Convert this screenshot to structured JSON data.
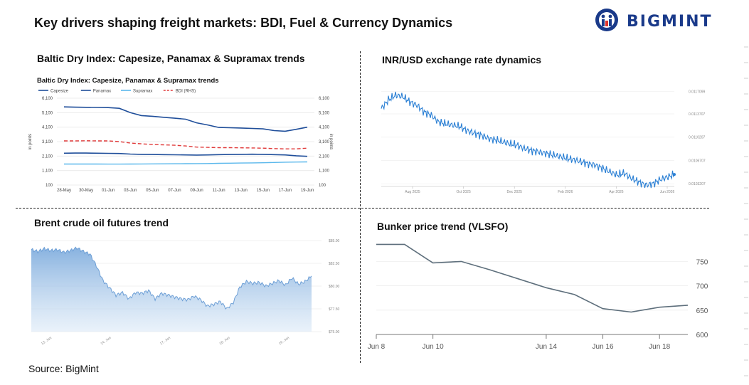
{
  "header": {
    "title": "Key drivers shaping freight markets: BDI, Fuel & Currency Dynamics",
    "logo_text": "BIGMINT"
  },
  "source": "Source: BigMint",
  "panels": {
    "bdi": {
      "title": "Baltic Dry Index: Capesize, Panamax & Supramax trends"
    },
    "inr": {
      "title": "INR/USD exchange rate dynamics"
    },
    "brent": {
      "title": "Brent crude oil futures trend"
    },
    "bunker": {
      "title": "Bunker price trend (VLSFO)"
    }
  },
  "chart_data": [
    {
      "type": "line",
      "title": "Baltic Dry Index: Capesize, Panamax & Supramax trends",
      "ylabel": "in points",
      "ylabel_right": "in points",
      "ylim": [
        100,
        6100
      ],
      "yticks": [
        "100",
        "1,100",
        "2,100",
        "3,100",
        "4,100",
        "5,100",
        "6,100"
      ],
      "categories": [
        "28-May",
        "30-May",
        "01-Jun",
        "03-Jun",
        "05-Jun",
        "07-Jun",
        "09-Jun",
        "11-Jun",
        "13-Jun",
        "15-Jun",
        "17-Jun",
        "19-Jun"
      ],
      "x": [
        "28-May",
        "29-May",
        "30-May",
        "31-May",
        "01-Jun",
        "02-Jun",
        "03-Jun",
        "04-Jun",
        "05-Jun",
        "06-Jun",
        "07-Jun",
        "08-Jun",
        "09-Jun",
        "10-Jun",
        "11-Jun",
        "12-Jun",
        "13-Jun",
        "14-Jun",
        "15-Jun",
        "16-Jun",
        "17-Jun",
        "18-Jun",
        "19-Jun"
      ],
      "series": [
        {
          "name": "Capesize",
          "color": "#1f4e9a",
          "dash": false,
          "values": [
            5500,
            5480,
            5470,
            5460,
            5450,
            5400,
            5100,
            4900,
            4850,
            4780,
            4720,
            4650,
            4400,
            4250,
            4080,
            4060,
            4040,
            4010,
            3980,
            3860,
            3820,
            3950,
            4100
          ]
        },
        {
          "name": "Panamax",
          "color": "#1f4e9a",
          "dash": false,
          "values": [
            2300,
            2310,
            2310,
            2300,
            2290,
            2280,
            2240,
            2220,
            2210,
            2200,
            2190,
            2180,
            2170,
            2180,
            2200,
            2210,
            2220,
            2230,
            2220,
            2200,
            2180,
            2120,
            2080
          ]
        },
        {
          "name": "Supramax",
          "color": "#5bb8ec",
          "dash": false,
          "values": [
            1550,
            1550,
            1550,
            1550,
            1545,
            1545,
            1550,
            1555,
            1560,
            1565,
            1570,
            1575,
            1580,
            1585,
            1600,
            1610,
            1620,
            1630,
            1640,
            1660,
            1680,
            1690,
            1700
          ]
        },
        {
          "name": "BDI (RHS)",
          "color": "#e03a3a",
          "dash": true,
          "values": [
            3150,
            3150,
            3160,
            3150,
            3150,
            3100,
            3000,
            2950,
            2900,
            2880,
            2850,
            2800,
            2720,
            2700,
            2680,
            2680,
            2670,
            2660,
            2650,
            2620,
            2600,
            2600,
            2650
          ]
        }
      ]
    },
    {
      "type": "line",
      "title": "",
      "x_ticks": [
        "Aug 2025",
        "Oct 2025",
        "Dec 2025",
        "Feb 2026",
        "Apr 2026",
        "Jun 2026"
      ],
      "y_ticks": [
        "0.0117099",
        "0.0113707",
        "0.0110207",
        "0.0106707",
        "0.0103207"
      ],
      "ylim": [
        0.01028,
        0.01182
      ],
      "series": [
        {
          "name": "",
          "color": "#2a7fd4",
          "values": [
            0.01145,
            0.01158,
            0.01165,
            0.01163,
            0.01155,
            0.0115,
            0.0114,
            0.01135,
            0.01125,
            0.01122,
            0.0112,
            0.01118,
            0.01112,
            0.01108,
            0.01105,
            0.011,
            0.01098,
            0.01095,
            0.01092,
            0.0109,
            0.01085,
            0.01082,
            0.0108,
            0.01078,
            0.01075,
            0.01073,
            0.0107,
            0.01068,
            0.01065,
            0.01062,
            0.0106,
            0.01055,
            0.0105,
            0.01045,
            0.01048,
            0.0104,
            0.01035,
            0.0103,
            0.01032,
            0.01038,
            0.01042,
            0.01046
          ]
        }
      ]
    },
    {
      "type": "area",
      "title": "",
      "x_ticks": [
        "13. Jun",
        "14. Jun",
        "17. Jun",
        "18. Jun",
        "19. Jun"
      ],
      "y_ticks": [
        "$85.00",
        "$82.50",
        "$80.00",
        "$77.50",
        "$75.00"
      ],
      "ylim": [
        75,
        85
      ],
      "series": [
        {
          "name": "",
          "color": "#8fb8e6",
          "values": [
            84.0,
            83.8,
            84.1,
            83.9,
            84.0,
            83.7,
            83.9,
            84.2,
            83.8,
            83.5,
            82.2,
            80.6,
            79.8,
            79.0,
            79.3,
            78.6,
            79.3,
            79.2,
            79.5,
            78.6,
            79.2,
            79.0,
            78.8,
            78.6,
            78.5,
            78.9,
            78.5,
            77.8,
            78.0,
            78.3,
            77.5,
            78.2,
            79.9,
            80.5,
            80.3,
            80.4,
            80.0,
            80.3,
            80.6,
            80.1,
            80.9,
            80.2,
            80.5,
            81.1
          ]
        }
      ]
    },
    {
      "type": "line",
      "title": "",
      "x_ticks": [
        "Jun 8",
        "Jun 10",
        "Jun 14",
        "Jun 16",
        "Jun 18"
      ],
      "y_ticks": [
        "600",
        "650",
        "700",
        "750"
      ],
      "ylim": [
        600,
        790
      ],
      "x": [
        "Jun 8",
        "Jun 9",
        "Jun 10",
        "Jun 11",
        "Jun 12",
        "Jun 14",
        "Jun 15",
        "Jun 16",
        "Jun 17",
        "Jun 18",
        "Jun 19"
      ],
      "series": [
        {
          "name": "",
          "color": "#5e6f7c",
          "values": [
            785,
            785,
            747,
            750,
            733,
            696,
            682,
            653,
            646,
            656,
            660
          ]
        }
      ]
    }
  ]
}
